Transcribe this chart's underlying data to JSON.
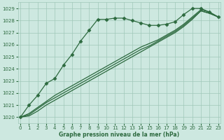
{
  "xlabel": "Graphe pression niveau de la mer (hPa)",
  "ylim": [
    1019.5,
    1029.5
  ],
  "xlim": [
    -0.3,
    23.3
  ],
  "yticks": [
    1020,
    1021,
    1022,
    1023,
    1024,
    1025,
    1026,
    1027,
    1028,
    1029
  ],
  "xticks": [
    0,
    1,
    2,
    3,
    4,
    5,
    6,
    7,
    8,
    9,
    10,
    11,
    12,
    13,
    14,
    15,
    16,
    17,
    18,
    19,
    20,
    21,
    22,
    23
  ],
  "bg_color": "#cde8e0",
  "grid_color": "#a0c8b8",
  "line_color": "#2d6a3f",
  "lines": [
    {
      "y": [
        1020.0,
        1021.0,
        1021.8,
        1022.8,
        1023.2,
        1024.3,
        1025.2,
        1026.3,
        1027.2,
        1028.1,
        1028.1,
        1028.2,
        1028.2,
        1028.0,
        1027.8,
        1027.6,
        1027.6,
        1027.7,
        1027.9,
        1028.5,
        1029.0,
        1029.0,
        1028.7,
        1028.3
      ],
      "marker": "D",
      "markersize": 2.5,
      "linewidth": 0.9,
      "linestyle": "-"
    },
    {
      "y": [
        1020.0,
        1020.3,
        1020.8,
        1021.3,
        1021.8,
        1022.2,
        1022.6,
        1023.0,
        1023.4,
        1023.8,
        1024.2,
        1024.6,
        1025.0,
        1025.4,
        1025.8,
        1026.1,
        1026.4,
        1026.8,
        1027.2,
        1027.7,
        1028.3,
        1028.9,
        1028.7,
        1028.3
      ],
      "marker": null,
      "markersize": 0,
      "linewidth": 0.9,
      "linestyle": "-"
    },
    {
      "y": [
        1020.0,
        1020.2,
        1020.7,
        1021.2,
        1021.6,
        1022.0,
        1022.4,
        1022.8,
        1023.2,
        1023.6,
        1024.0,
        1024.4,
        1024.8,
        1025.2,
        1025.6,
        1025.9,
        1026.3,
        1026.7,
        1027.1,
        1027.6,
        1028.2,
        1028.8,
        1028.6,
        1028.3
      ],
      "marker": null,
      "markersize": 0,
      "linewidth": 0.9,
      "linestyle": "-"
    },
    {
      "y": [
        1020.0,
        1020.1,
        1020.5,
        1021.0,
        1021.4,
        1021.8,
        1022.2,
        1022.6,
        1023.0,
        1023.4,
        1023.8,
        1024.2,
        1024.6,
        1025.0,
        1025.4,
        1025.8,
        1026.2,
        1026.6,
        1027.0,
        1027.5,
        1028.1,
        1028.8,
        1028.6,
        1028.3
      ],
      "marker": null,
      "markersize": 0,
      "linewidth": 0.9,
      "linestyle": "-"
    }
  ],
  "tick_labelsize": 5,
  "xlabel_fontsize": 5.5,
  "xlabel_fontweight": "bold"
}
